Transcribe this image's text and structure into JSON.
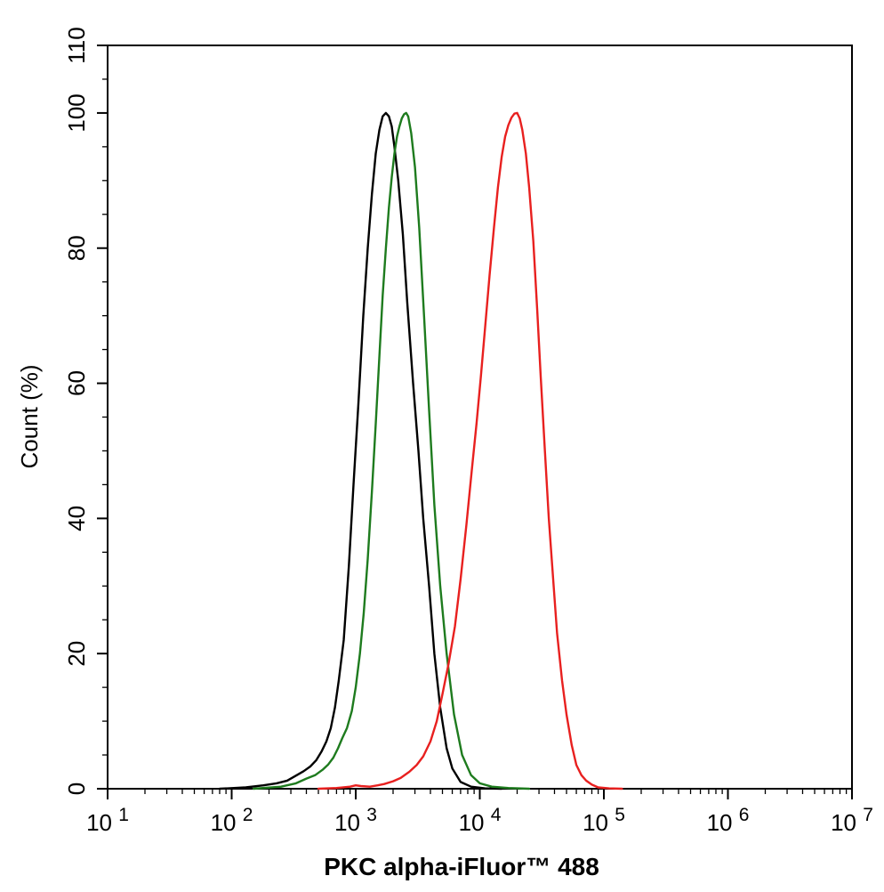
{
  "chart_data": {
    "type": "line",
    "title": "",
    "xlabel": "PKC alpha-iFluor™ 488",
    "ylabel": "Count  (%)",
    "x_scale": "log10",
    "xlim": [
      10,
      10000000
    ],
    "ylim": [
      0,
      110
    ],
    "x_ticks": [
      {
        "value": 10,
        "base": "10",
        "exp": "1"
      },
      {
        "value": 100,
        "base": "10",
        "exp": "2"
      },
      {
        "value": 1000,
        "base": "10",
        "exp": "3"
      },
      {
        "value": 10000,
        "base": "10",
        "exp": "4"
      },
      {
        "value": 100000,
        "base": "10",
        "exp": "5"
      },
      {
        "value": 1000000,
        "base": "10",
        "exp": "6"
      },
      {
        "value": 10000000,
        "base": "10",
        "exp": "7"
      }
    ],
    "y_ticks": [
      0,
      20,
      40,
      60,
      80,
      100,
      110
    ],
    "y_tick_labels": [
      "0",
      "20",
      "40",
      "60",
      "80",
      "100",
      "110"
    ],
    "grid": false,
    "legend": "none",
    "series": [
      {
        "color": "#000000",
        "x": [
          80,
          130,
          180,
          230,
          280,
          320,
          380,
          430,
          480,
          530,
          580,
          630,
          680,
          730,
          800,
          880,
          960,
          1050,
          1150,
          1250,
          1350,
          1450,
          1550,
          1650,
          1750,
          1850,
          1950,
          2050,
          2200,
          2400,
          2600,
          2900,
          3200,
          3500,
          3900,
          4300,
          4800,
          5400,
          6000,
          7000,
          8500,
          11000,
          15000
        ],
        "y": [
          0,
          0.2,
          0.5,
          0.8,
          1.2,
          1.8,
          2.6,
          3.3,
          4.2,
          5.5,
          7.0,
          9.0,
          12.0,
          16.0,
          22.0,
          33.0,
          45.0,
          57.0,
          70.0,
          80.0,
          88.0,
          94.0,
          97.5,
          99.5,
          100,
          99.5,
          98.0,
          95.0,
          90.0,
          82.0,
          72.0,
          60.0,
          50.0,
          40.0,
          30.0,
          20.0,
          12.0,
          6.0,
          3.0,
          1.0,
          0.3,
          0.05,
          0
        ]
      },
      {
        "color": "#1e7b1e",
        "x": [
          150,
          250,
          330,
          400,
          470,
          540,
          600,
          660,
          720,
          780,
          850,
          930,
          1000,
          1080,
          1160,
          1250,
          1350,
          1450,
          1550,
          1650,
          1750,
          1850,
          1950,
          2050,
          2150,
          2250,
          2350,
          2450,
          2550,
          2650,
          2800,
          3000,
          3250,
          3550,
          3900,
          4300,
          4800,
          5400,
          6200,
          7200,
          8500,
          10000,
          12500,
          17000,
          25000
        ],
        "y": [
          0,
          0.3,
          0.8,
          1.5,
          2.0,
          2.8,
          3.6,
          4.6,
          6.0,
          7.5,
          9.0,
          11.5,
          15.0,
          20.0,
          26.0,
          34.0,
          44.0,
          54.0,
          64.0,
          73.0,
          80.0,
          86.0,
          90.5,
          94.0,
          96.5,
          98.0,
          99.2,
          99.8,
          100,
          99.5,
          97.0,
          92.0,
          83.0,
          70.0,
          56.0,
          42.0,
          30.0,
          20.0,
          11.0,
          5.0,
          2.0,
          0.8,
          0.3,
          0.1,
          0
        ]
      },
      {
        "color": "#e8201f",
        "x": [
          500,
          700,
          900,
          1000,
          1100,
          1300,
          1500,
          1700,
          2000,
          2300,
          2700,
          3100,
          3500,
          4000,
          4500,
          5000,
          5600,
          6300,
          7000,
          7800,
          8600,
          9400,
          10200,
          11000,
          12000,
          13000,
          14000,
          15000,
          16000,
          17000,
          18000,
          19000,
          20000,
          21000,
          22000,
          23500,
          25000,
          27000,
          29000,
          31000,
          33500,
          36000,
          39000,
          42000,
          46000,
          50000,
          55000,
          60000,
          66000,
          72000,
          80000,
          90000,
          110000,
          140000
        ],
        "y": [
          0,
          0.1,
          0.3,
          0.5,
          0.4,
          0.3,
          0.5,
          0.7,
          1.1,
          1.6,
          2.5,
          3.5,
          4.8,
          7.0,
          10.0,
          14.0,
          18.5,
          24.0,
          31.0,
          39.0,
          47.0,
          54.0,
          61.0,
          68.0,
          76.0,
          83.0,
          89.0,
          93.5,
          96.5,
          98.2,
          99.3,
          99.9,
          100,
          99.2,
          97.5,
          94.0,
          89.0,
          81.0,
          71.0,
          61.0,
          50.0,
          40.0,
          31.0,
          23.0,
          16.0,
          11.0,
          6.5,
          3.5,
          2.0,
          1.2,
          0.6,
          0.2,
          0.05,
          0
        ]
      }
    ]
  }
}
